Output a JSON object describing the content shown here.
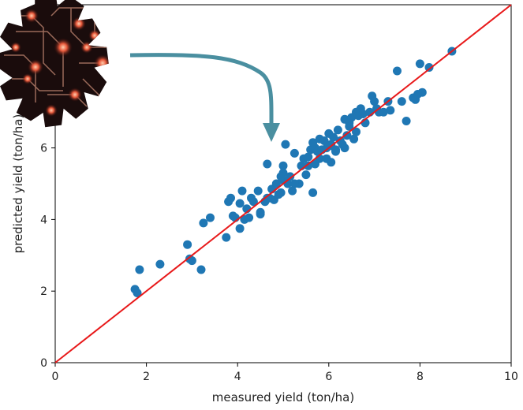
{
  "chart_data": {
    "type": "scatter",
    "title": "",
    "xlabel": "measured yield (ton/ha)",
    "ylabel": "predicted yield (ton/ha)",
    "xlim": [
      0,
      10
    ],
    "ylim": [
      0,
      10
    ],
    "xticks": [
      0,
      2,
      4,
      6,
      8,
      10
    ],
    "yticks": [
      0,
      2,
      4,
      6
    ],
    "grid": false,
    "series": [
      {
        "marker_color": "#1f77b4",
        "x": [
          1.75,
          1.8,
          1.85,
          2.3,
          2.9,
          2.95,
          3.0,
          3.2,
          3.25,
          3.4,
          3.75,
          3.8,
          3.85,
          3.95,
          4.05,
          4.05,
          4.1,
          4.15,
          4.2,
          4.3,
          4.35,
          4.45,
          4.5,
          4.6,
          4.65,
          4.7,
          4.75,
          4.8,
          4.85,
          4.9,
          4.95,
          5.0,
          5.0,
          5.05,
          5.1,
          5.15,
          5.2,
          5.25,
          5.35,
          5.4,
          5.45,
          5.5,
          5.55,
          5.6,
          5.65,
          5.7,
          5.7,
          5.75,
          5.8,
          5.8,
          5.85,
          5.9,
          5.95,
          6.0,
          6.0,
          6.05,
          6.1,
          6.15,
          6.2,
          6.25,
          6.3,
          6.35,
          6.4,
          6.45,
          6.5,
          6.55,
          6.6,
          6.6,
          6.65,
          6.7,
          6.75,
          6.8,
          6.9,
          6.95,
          7.0,
          7.05,
          7.1,
          7.2,
          7.3,
          7.35,
          7.5,
          7.6,
          7.7,
          7.85,
          7.9,
          8.0,
          8.05,
          8.2,
          8.7,
          5.65,
          5.0,
          4.65,
          4.5,
          3.9,
          4.25,
          5.4,
          5.95,
          6.15,
          6.35,
          6.05,
          5.55,
          5.25,
          4.95,
          6.45,
          7.95
        ],
        "y": [
          2.05,
          1.95,
          2.6,
          2.75,
          3.3,
          2.9,
          2.85,
          2.6,
          3.9,
          4.05,
          3.5,
          4.5,
          4.6,
          4.05,
          4.45,
          3.75,
          4.8,
          4.0,
          4.3,
          4.6,
          4.5,
          4.8,
          4.15,
          4.5,
          5.55,
          4.6,
          4.85,
          4.55,
          5.0,
          4.7,
          4.75,
          5.1,
          5.5,
          6.1,
          5.0,
          5.2,
          4.8,
          5.85,
          5.0,
          5.5,
          5.7,
          5.25,
          5.75,
          5.95,
          6.15,
          5.55,
          6.0,
          5.9,
          6.25,
          5.7,
          5.95,
          6.2,
          6.0,
          6.05,
          6.4,
          6.1,
          6.3,
          5.95,
          6.5,
          6.2,
          6.1,
          6.8,
          6.35,
          6.7,
          6.85,
          6.25,
          6.45,
          7.0,
          6.9,
          7.1,
          6.95,
          6.7,
          7.0,
          7.45,
          7.3,
          7.1,
          7.0,
          7.0,
          7.3,
          7.05,
          8.15,
          7.3,
          6.75,
          7.4,
          7.35,
          8.35,
          7.55,
          8.25,
          8.7,
          4.75,
          5.3,
          4.6,
          4.2,
          4.1,
          4.05,
          5.5,
          5.7,
          5.9,
          6.0,
          5.6,
          5.5,
          5.0,
          5.2,
          6.6,
          7.5
        ]
      }
    ],
    "reference_line": {
      "from": [
        0,
        0
      ],
      "to": [
        10,
        10
      ],
      "color": "#e8191a"
    }
  },
  "overlay": {
    "circuit_gear_icon": "circuit-gear-icon",
    "arrow_color": "#4a8fa0"
  }
}
